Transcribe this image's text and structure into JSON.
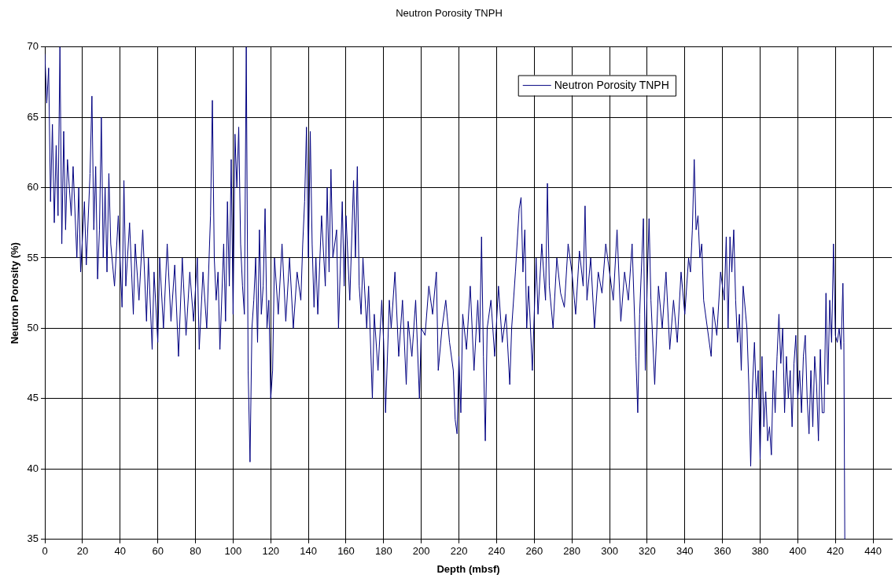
{
  "chart_data": {
    "type": "line",
    "title": "Neutron Porosity TNPH",
    "xlabel": "Depth (mbsf)",
    "ylabel": "Neutron Porosity (%)",
    "xlim": [
      0,
      450
    ],
    "xticks": [
      0,
      20,
      40,
      60,
      80,
      100,
      120,
      140,
      160,
      180,
      200,
      220,
      240,
      260,
      280,
      300,
      320,
      340,
      360,
      380,
      400,
      420,
      440
    ],
    "ylim": [
      35,
      70
    ],
    "yticks": [
      35,
      40,
      45,
      50,
      55,
      60,
      65,
      70
    ],
    "grid": true,
    "legend": "top right",
    "marker": "none",
    "line_style": "solid",
    "series": [
      {
        "name": "Neutron Porosity TNPH",
        "color": "#000080",
        "x": [
          0,
          1,
          2,
          3,
          4,
          5,
          6,
          7,
          8,
          9,
          10,
          11,
          12,
          14,
          15,
          17,
          18,
          19,
          21,
          22,
          24,
          25,
          26,
          27,
          28,
          29,
          30,
          31,
          32,
          33,
          34,
          35,
          37,
          39,
          41,
          42,
          43,
          45,
          47,
          48,
          50,
          52,
          54,
          55,
          57,
          58,
          60,
          61,
          63,
          65,
          67,
          69,
          71,
          73,
          75,
          77,
          79,
          81,
          82,
          84,
          86,
          88,
          89,
          90,
          91,
          92,
          93,
          95,
          96,
          97,
          98,
          99,
          100,
          101,
          102,
          103,
          104,
          105,
          106,
          107,
          108,
          109,
          110,
          111,
          112,
          113,
          114,
          115,
          116,
          117,
          118,
          119,
          120,
          121,
          122,
          124,
          126,
          128,
          130,
          132,
          134,
          136,
          137,
          138,
          139,
          140,
          141,
          142,
          143,
          144,
          145,
          147,
          149,
          150,
          151,
          152,
          153,
          155,
          156,
          158,
          159,
          160,
          162,
          164,
          165,
          166,
          167,
          168,
          169,
          171,
          172,
          174,
          175,
          177,
          179,
          180,
          181,
          183,
          184,
          186,
          188,
          190,
          192,
          193,
          195,
          197,
          199,
          200,
          202,
          204,
          206,
          208,
          209,
          211,
          213,
          215,
          217,
          218,
          219,
          220,
          221,
          222,
          224,
          226,
          228,
          230,
          231,
          232,
          233,
          234,
          235,
          237,
          239,
          241,
          243,
          245,
          247,
          248,
          250,
          252,
          253,
          254,
          255,
          256,
          257,
          259,
          261,
          262,
          264,
          266,
          267,
          268,
          270,
          272,
          274,
          276,
          278,
          280,
          282,
          284,
          286,
          287,
          288,
          290,
          292,
          294,
          296,
          298,
          300,
          302,
          304,
          306,
          308,
          310,
          312,
          314,
          315,
          316,
          318,
          319,
          320,
          321,
          322,
          324,
          326,
          328,
          330,
          332,
          334,
          336,
          338,
          340,
          342,
          343,
          344,
          345,
          346,
          347,
          348,
          349,
          350,
          352,
          354,
          355,
          357,
          359,
          361,
          362,
          363,
          364,
          365,
          366,
          367,
          368,
          369,
          370,
          371,
          373,
          374,
          375,
          376,
          377,
          378,
          379,
          380,
          381,
          382,
          383,
          384,
          385,
          386,
          387,
          388,
          389,
          390,
          391,
          392,
          393,
          394,
          395,
          396,
          397,
          398,
          399,
          400,
          401,
          402,
          403,
          404,
          405,
          406,
          407,
          408,
          409,
          410,
          411,
          412,
          413,
          414,
          415,
          416,
          417,
          418,
          419,
          420,
          421,
          422,
          423,
          424,
          424.5,
          425
        ],
        "values": [
          69.5,
          66,
          68.5,
          59,
          64.5,
          57.5,
          63,
          58,
          70,
          56,
          64,
          57,
          62,
          58,
          61.5,
          55,
          60,
          54,
          59,
          54.5,
          61,
          66.5,
          57,
          61.5,
          53.5,
          57,
          65,
          55,
          60,
          54,
          61,
          56,
          53,
          58,
          51.5,
          60.5,
          53,
          57.5,
          51,
          56,
          52,
          57,
          50.5,
          55,
          48.5,
          54,
          49,
          55,
          50,
          56,
          50.5,
          54.5,
          48,
          55,
          49.5,
          54,
          50.5,
          55,
          48.5,
          54,
          50,
          58,
          66.2,
          55,
          52,
          54,
          48.5,
          56,
          50.5,
          59,
          53,
          62,
          51,
          63.8,
          60,
          64.3,
          56,
          53,
          51,
          70,
          47,
          40.5,
          50,
          52,
          55,
          49,
          57,
          51,
          53,
          58.5,
          50,
          52,
          45,
          47,
          55,
          51,
          56,
          50.5,
          55,
          50,
          54,
          52,
          56,
          59,
          64.3,
          55,
          64,
          56,
          51.5,
          55,
          51,
          58,
          53,
          60,
          54,
          61.3,
          55,
          57,
          50,
          59,
          53,
          58,
          52,
          60.5,
          55,
          61.5,
          53,
          51,
          55,
          50,
          53,
          45,
          51,
          47,
          52,
          49,
          44,
          52,
          50,
          54,
          48,
          52,
          46,
          50.5,
          48,
          52,
          45,
          50,
          49.5,
          53,
          51,
          54,
          47,
          50,
          52,
          49,
          47,
          43.5,
          42.5,
          48,
          44,
          51,
          48.5,
          53,
          47,
          52,
          49,
          56.5,
          48,
          42,
          50,
          52,
          48,
          53,
          49,
          51,
          46,
          50,
          54,
          58.5,
          59.3,
          54,
          57,
          50,
          53,
          47,
          55,
          51,
          56,
          52,
          60.3,
          53,
          50,
          55,
          52.5,
          51.5,
          56,
          54,
          51,
          55.5,
          53,
          58.7,
          52,
          55,
          50,
          54,
          52.5,
          56,
          54,
          52,
          57,
          50.5,
          54,
          52,
          56,
          48,
          44,
          51,
          57.8,
          47,
          53,
          57.8,
          52,
          46,
          53,
          50,
          54,
          48.5,
          52,
          49,
          54,
          51,
          55,
          54,
          57,
          62,
          57,
          58,
          55,
          56,
          52,
          50,
          48,
          51.5,
          49.5,
          54,
          52,
          56.5,
          50,
          56.5,
          54,
          57,
          52,
          49,
          51,
          47,
          53,
          50,
          46,
          40.2,
          46,
          49,
          45,
          47,
          40.7,
          48,
          43,
          45.5,
          42,
          43,
          41,
          47,
          44,
          48,
          51,
          47.5,
          50,
          44,
          48,
          45,
          47,
          43,
          47.5,
          49.5,
          45,
          47,
          44,
          48,
          49.5,
          45,
          42.5,
          47,
          43,
          48,
          46,
          42,
          48.5,
          44,
          44,
          52.5,
          46,
          52,
          49,
          56,
          49.5,
          49,
          50,
          48.5,
          53.2,
          49,
          35
        ]
      }
    ]
  }
}
